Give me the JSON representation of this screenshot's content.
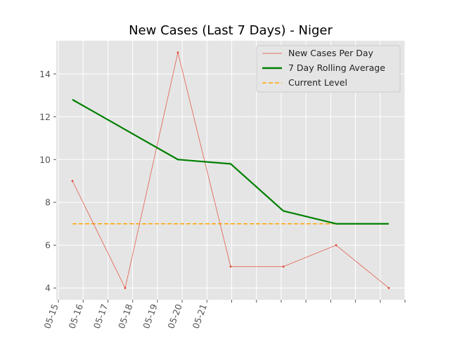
{
  "chart_data": {
    "type": "line",
    "title": "New Cases (Last 7 Days) - Niger",
    "xlabel": "",
    "ylabel": "",
    "x": [
      "05-15",
      "05-16",
      "05-17",
      "05-18",
      "05-19",
      "05-20",
      "05-21"
    ],
    "x_tick_labels": [
      "05-15",
      "05-16",
      "05-17",
      "05-18",
      "05-19",
      "05-20",
      "05-21"
    ],
    "y_ticks": [
      4,
      6,
      8,
      10,
      12,
      14
    ],
    "ylim": [
      3.45,
      15.55
    ],
    "grid": true,
    "legend_position": "top-right",
    "series": [
      {
        "name": "New Cases Per Day",
        "values": [
          9,
          4,
          15,
          5,
          5,
          6,
          4
        ],
        "color": "#e24a33",
        "style": "thin-solid-with-points"
      },
      {
        "name": "7 Day Rolling Average",
        "values": [
          12.8,
          11.4,
          10.0,
          9.8,
          7.6,
          7.0,
          7.0
        ],
        "color": "#008000",
        "style": "thick-solid"
      },
      {
        "name": "Current Level",
        "values": [
          7,
          7,
          7,
          7,
          7,
          7,
          7
        ],
        "color": "#ffa500",
        "style": "dashed"
      }
    ]
  }
}
